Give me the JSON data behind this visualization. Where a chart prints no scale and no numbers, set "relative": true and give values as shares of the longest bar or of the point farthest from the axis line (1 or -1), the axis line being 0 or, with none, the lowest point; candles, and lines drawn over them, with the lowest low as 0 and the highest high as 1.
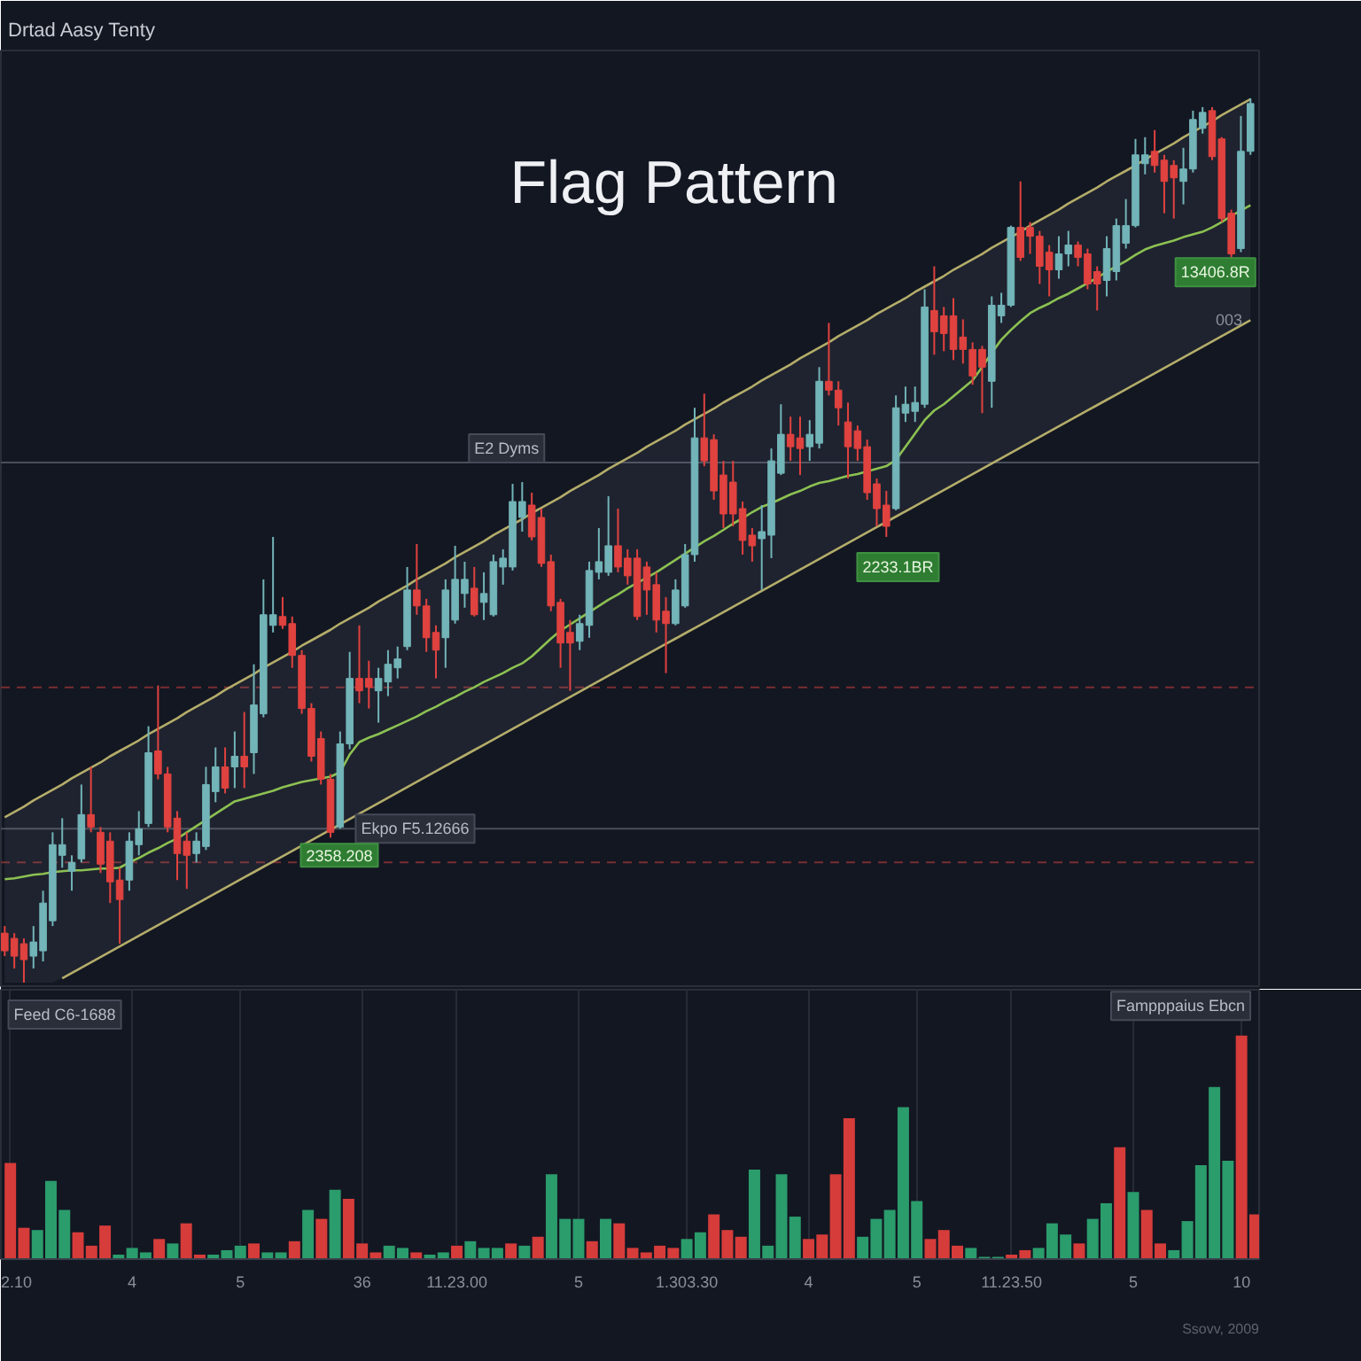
{
  "chart_data": [
    {
      "type": "candlestick",
      "relative": true,
      "tick_labels": false,
      "title": "Flag Pattern",
      "subtitle": "Drtad Aasy Tenty",
      "categories": [
        null,
        null,
        null,
        null,
        null,
        null,
        null,
        null,
        null,
        null,
        null,
        null,
        null,
        null,
        null,
        null,
        null,
        null,
        null,
        null,
        null,
        null,
        null,
        null,
        null,
        null,
        null,
        null,
        null,
        null,
        null,
        null,
        null,
        null,
        null,
        null,
        null,
        null,
        null,
        null,
        null,
        null,
        null,
        null,
        null,
        null,
        null,
        null,
        null,
        null,
        null,
        null,
        null,
        null,
        null,
        null,
        null,
        null,
        null,
        null,
        null,
        null,
        null,
        null,
        null,
        null,
        null,
        null,
        null,
        null,
        null,
        null,
        null,
        null,
        null,
        null,
        null,
        null,
        null,
        null,
        null,
        null,
        null,
        null,
        null,
        null,
        null,
        null,
        null,
        null,
        null,
        null,
        null,
        null,
        null,
        null,
        null,
        null,
        null,
        null,
        null,
        null,
        null,
        null,
        null,
        null,
        null,
        null,
        null,
        null,
        null,
        null,
        null,
        null,
        null,
        null,
        null,
        null,
        null,
        null,
        null,
        null,
        null,
        null,
        null,
        null,
        null,
        null,
        null,
        null,
        null
      ],
      "ohlc": [
        [
          0.056,
          0.064,
          0.03,
          0.036
        ],
        [
          0.05,
          0.056,
          0.016,
          0.03
        ],
        [
          0.044,
          0.05,
          0,
          0.026
        ],
        [
          0.03,
          0.064,
          0.016,
          0.046
        ],
        [
          0.036,
          0.104,
          0.024,
          0.09
        ],
        [
          0.07,
          0.17,
          0.064,
          0.156
        ],
        [
          0.144,
          0.186,
          0.13,
          0.156
        ],
        [
          0.126,
          0.144,
          0.104,
          0.136
        ],
        [
          0.14,
          0.224,
          0.136,
          0.19
        ],
        [
          0.19,
          0.244,
          0.17,
          0.176
        ],
        [
          0.17,
          0.176,
          0.124,
          0.134
        ],
        [
          0.16,
          0.17,
          0.09,
          0.114
        ],
        [
          0.116,
          0.13,
          0.044,
          0.094
        ],
        [
          0.116,
          0.17,
          0.104,
          0.16
        ],
        [
          0.156,
          0.194,
          0.144,
          0.174
        ],
        [
          0.18,
          0.29,
          0.176,
          0.26
        ],
        [
          0.262,
          0.336,
          0.23,
          0.236
        ],
        [
          0.236,
          0.244,
          0.17,
          0.176
        ],
        [
          0.186,
          0.194,
          0.116,
          0.146
        ],
        [
          0.16,
          0.17,
          0.106,
          0.144
        ],
        [
          0.146,
          0.17,
          0.136,
          0.16
        ],
        [
          0.154,
          0.244,
          0.15,
          0.224
        ],
        [
          0.216,
          0.266,
          0.204,
          0.244
        ],
        [
          0.244,
          0.266,
          0.214,
          0.22
        ],
        [
          0.244,
          0.284,
          0.22,
          0.256
        ],
        [
          0.256,
          0.306,
          0.22,
          0.244
        ],
        [
          0.26,
          0.36,
          0.236,
          0.314
        ],
        [
          0.304,
          0.456,
          0.3,
          0.416
        ],
        [
          0.404,
          0.504,
          0.396,
          0.416
        ],
        [
          0.414,
          0.436,
          0.4,
          0.404
        ],
        [
          0.406,
          0.414,
          0.356,
          0.37
        ],
        [
          0.37,
          0.376,
          0.304,
          0.31
        ],
        [
          0.31,
          0.316,
          0.25,
          0.256
        ],
        [
          0.276,
          0.284,
          0.224,
          0.23
        ],
        [
          0.23,
          0.236,
          0.164,
          0.17
        ],
        [
          0.176,
          0.284,
          0.174,
          0.27
        ],
        [
          0.27,
          0.374,
          0.264,
          0.344
        ],
        [
          0.344,
          0.404,
          0.316,
          0.33
        ],
        [
          0.344,
          0.364,
          0.31,
          0.334
        ],
        [
          0.33,
          0.356,
          0.294,
          0.344
        ],
        [
          0.34,
          0.376,
          0.324,
          0.36
        ],
        [
          0.356,
          0.38,
          0.344,
          0.366
        ],
        [
          0.38,
          0.47,
          0.376,
          0.444
        ],
        [
          0.444,
          0.496,
          0.416,
          0.426
        ],
        [
          0.426,
          0.434,
          0.374,
          0.39
        ],
        [
          0.396,
          0.404,
          0.344,
          0.376
        ],
        [
          0.39,
          0.456,
          0.356,
          0.444
        ],
        [
          0.41,
          0.494,
          0.406,
          0.456
        ],
        [
          0.44,
          0.476,
          0.424,
          0.456
        ],
        [
          0.446,
          0.47,
          0.414,
          0.416
        ],
        [
          0.43,
          0.464,
          0.41,
          0.44
        ],
        [
          0.416,
          0.484,
          0.414,
          0.476
        ],
        [
          0.47,
          0.49,
          0.45,
          0.48
        ],
        [
          0.47,
          0.564,
          0.466,
          0.544
        ],
        [
          0.526,
          0.566,
          0.51,
          0.544
        ],
        [
          0.54,
          0.554,
          0.5,
          0.504
        ],
        [
          0.526,
          0.536,
          0.47,
          0.474
        ],
        [
          0.476,
          0.484,
          0.42,
          0.426
        ],
        [
          0.43,
          0.434,
          0.356,
          0.384
        ],
        [
          0.396,
          0.41,
          0.33,
          0.384
        ],
        [
          0.386,
          0.416,
          0.376,
          0.406
        ],
        [
          0.404,
          0.476,
          0.39,
          0.466
        ],
        [
          0.464,
          0.514,
          0.456,
          0.476
        ],
        [
          0.464,
          0.55,
          0.46,
          0.494
        ],
        [
          0.494,
          0.536,
          0.464,
          0.47
        ],
        [
          0.48,
          0.49,
          0.45,
          0.46
        ],
        [
          0.48,
          0.49,
          0.41,
          0.414
        ],
        [
          0.47,
          0.476,
          0.416,
          0.444
        ],
        [
          0.45,
          0.464,
          0.396,
          0.41
        ],
        [
          0.42,
          0.436,
          0.35,
          0.406
        ],
        [
          0.406,
          0.456,
          0.404,
          0.444
        ],
        [
          0.426,
          0.496,
          0.424,
          0.484
        ],
        [
          0.484,
          0.65,
          0.476,
          0.616
        ],
        [
          0.616,
          0.666,
          0.584,
          0.59
        ],
        [
          0.614,
          0.62,
          0.546,
          0.556
        ],
        [
          0.574,
          0.59,
          0.514,
          0.53
        ],
        [
          0.566,
          0.59,
          0.516,
          0.53
        ],
        [
          0.536,
          0.544,
          0.484,
          0.5
        ],
        [
          0.506,
          0.514,
          0.476,
          0.494
        ],
        [
          0.502,
          0.54,
          0.444,
          0.51
        ],
        [
          0.506,
          0.604,
          0.48,
          0.59
        ],
        [
          0.576,
          0.654,
          0.574,
          0.62
        ],
        [
          0.62,
          0.64,
          0.59,
          0.606
        ],
        [
          0.616,
          0.64,
          0.574,
          0.604
        ],
        [
          0.606,
          0.636,
          0.59,
          0.62
        ],
        [
          0.61,
          0.696,
          0.604,
          0.68
        ],
        [
          0.68,
          0.746,
          0.664,
          0.67
        ],
        [
          0.67,
          0.68,
          0.63,
          0.65
        ],
        [
          0.634,
          0.656,
          0.57,
          0.606
        ],
        [
          0.624,
          0.63,
          0.59,
          0.604
        ],
        [
          0.606,
          0.614,
          0.546,
          0.554
        ],
        [
          0.564,
          0.57,
          0.516,
          0.536
        ],
        [
          0.54,
          0.556,
          0.504,
          0.516
        ],
        [
          0.536,
          0.664,
          0.534,
          0.65
        ],
        [
          0.644,
          0.674,
          0.634,
          0.654
        ],
        [
          0.646,
          0.674,
          0.634,
          0.656
        ],
        [
          0.654,
          0.784,
          0.65,
          0.764
        ],
        [
          0.76,
          0.81,
          0.71,
          0.736
        ],
        [
          0.754,
          0.764,
          0.714,
          0.734
        ],
        [
          0.754,
          0.774,
          0.704,
          0.716
        ],
        [
          0.73,
          0.75,
          0.7,
          0.716
        ],
        [
          0.716,
          0.724,
          0.676,
          0.686
        ],
        [
          0.716,
          0.72,
          0.644,
          0.696
        ],
        [
          0.68,
          0.776,
          0.65,
          0.766
        ],
        [
          0.754,
          0.78,
          0.746,
          0.766
        ],
        [
          0.766,
          0.856,
          0.764,
          0.854
        ],
        [
          0.854,
          0.906,
          0.816,
          0.82
        ],
        [
          0.854,
          0.86,
          0.824,
          0.844
        ],
        [
          0.844,
          0.85,
          0.79,
          0.81
        ],
        [
          0.826,
          0.834,
          0.776,
          0.806
        ],
        [
          0.806,
          0.844,
          0.796,
          0.824
        ],
        [
          0.824,
          0.85,
          0.81,
          0.834
        ],
        [
          0.834,
          0.838,
          0.81,
          0.82
        ],
        [
          0.824,
          0.83,
          0.784,
          0.79
        ],
        [
          0.804,
          0.81,
          0.76,
          0.79
        ],
        [
          0.794,
          0.844,
          0.776,
          0.83
        ],
        [
          0.804,
          0.864,
          0.794,
          0.856
        ],
        [
          0.836,
          0.886,
          0.83,
          0.856
        ],
        [
          0.856,
          0.954,
          0.854,
          0.936
        ],
        [
          0.926,
          0.956,
          0.914,
          0.936
        ],
        [
          0.94,
          0.964,
          0.916,
          0.924
        ],
        [
          0.93,
          0.936,
          0.87,
          0.906
        ],
        [
          0.924,
          0.93,
          0.864,
          0.91
        ],
        [
          0.906,
          0.944,
          0.88,
          0.92
        ],
        [
          0.92,
          0.986,
          0.916,
          0.976
        ],
        [
          0.966,
          0.99,
          0.96,
          0.984
        ],
        [
          0.986,
          0.99,
          0.93,
          0.934
        ],
        [
          0.954,
          0.956,
          0.86,
          0.864
        ],
        [
          0.87,
          0.874,
          0.82,
          0.824
        ],
        [
          0.83,
          0.98,
          0.826,
          0.94
        ],
        [
          0.94,
          1,
          0.936,
          0.994
        ]
      ],
      "colors": [
        "#e0423f",
        "#e0423f",
        "#e0423f",
        "#72b4b8",
        "#72b4b8",
        "#72b4b8",
        "#72b4b8",
        "#72b4b8",
        "#72b4b8",
        "#e0423f",
        "#e0423f",
        "#e0423f",
        "#e0423f",
        "#72b4b8",
        "#72b4b8",
        "#72b4b8",
        "#e0423f",
        "#e0423f",
        "#e0423f",
        "#e0423f",
        "#72b4b8",
        "#72b4b8",
        "#72b4b8",
        "#e0423f",
        "#72b4b8",
        "#e0423f",
        "#72b4b8",
        "#72b4b8",
        "#72b4b8",
        "#e0423f",
        "#e0423f",
        "#e0423f",
        "#e0423f",
        "#e0423f",
        "#e0423f",
        "#72b4b8",
        "#72b4b8",
        "#e0423f",
        "#e0423f",
        "#72b4b8",
        "#72b4b8",
        "#72b4b8",
        "#72b4b8",
        "#e0423f",
        "#e0423f",
        "#e0423f",
        "#72b4b8",
        "#72b4b8",
        "#72b4b8",
        "#e0423f",
        "#72b4b8",
        "#72b4b8",
        "#72b4b8",
        "#72b4b8",
        "#72b4b8",
        "#e0423f",
        "#e0423f",
        "#e0423f",
        "#e0423f",
        "#e0423f",
        "#72b4b8",
        "#72b4b8",
        "#72b4b8",
        "#72b4b8",
        "#e0423f",
        "#e0423f",
        "#e0423f",
        "#e0423f",
        "#e0423f",
        "#e0423f",
        "#72b4b8",
        "#72b4b8",
        "#72b4b8",
        "#e0423f",
        "#e0423f",
        "#e0423f",
        "#e0423f",
        "#e0423f",
        "#e0423f",
        "#72b4b8",
        "#72b4b8",
        "#72b4b8",
        "#e0423f",
        "#e0423f",
        "#72b4b8",
        "#72b4b8",
        "#e0423f",
        "#e0423f",
        "#e0423f",
        "#e0423f",
        "#e0423f",
        "#e0423f",
        "#e0423f",
        "#72b4b8",
        "#72b4b8",
        "#72b4b8",
        "#72b4b8",
        "#e0423f",
        "#e0423f",
        "#e0423f",
        "#e0423f",
        "#e0423f",
        "#e0423f",
        "#72b4b8",
        "#72b4b8",
        "#72b4b8",
        "#e0423f",
        "#e0423f",
        "#e0423f",
        "#e0423f",
        "#72b4b8",
        "#72b4b8",
        "#e0423f",
        "#e0423f",
        "#e0423f",
        "#72b4b8",
        "#72b4b8",
        "#72b4b8",
        "#72b4b8",
        "#72b4b8",
        "#e0423f",
        "#e0423f",
        "#e0423f",
        "#72b4b8",
        "#72b4b8",
        "#72b4b8",
        "#e0423f",
        "#e0423f",
        "#e0423f",
        "#72b4b8",
        "#72b4b8"
      ],
      "series": [
        {
          "type": "line",
          "color": "#b4ad6a",
          "values": [
            0.187,
            0.193,
            0.199,
            0.206,
            0.212,
            0.218,
            0.224,
            0.231,
            0.237,
            0.243,
            0.249,
            0.256,
            0.262,
            0.268,
            0.274,
            0.281,
            0.287,
            0.293,
            0.299,
            0.306,
            0.312,
            0.318,
            0.324,
            0.331,
            0.337,
            0.343,
            0.349,
            0.356,
            0.362,
            0.368,
            0.374,
            0.381,
            0.387,
            0.393,
            0.399,
            0.406,
            0.412,
            0.418,
            0.424,
            0.431,
            0.437,
            0.443,
            0.449,
            0.456,
            0.462,
            0.468,
            0.474,
            0.481,
            0.487,
            0.493,
            0.499,
            0.506,
            0.512,
            0.518,
            0.524,
            0.531,
            0.537,
            0.543,
            0.549,
            0.556,
            0.562,
            0.568,
            0.574,
            0.581,
            0.587,
            0.593,
            0.599,
            0.606,
            0.612,
            0.618,
            0.624,
            0.631,
            0.637,
            0.643,
            0.649,
            0.656,
            0.662,
            0.668,
            0.674,
            0.681,
            0.687,
            0.693,
            0.699,
            0.706,
            0.712,
            0.718,
            0.724,
            0.731,
            0.737,
            0.743,
            0.749,
            0.756,
            0.762,
            0.768,
            0.774,
            0.781,
            0.787,
            0.793,
            0.799,
            0.806,
            0.812,
            0.818,
            0.824,
            0.831,
            0.837,
            0.843,
            0.849,
            0.856,
            0.862,
            0.868,
            0.874,
            0.881,
            0.887,
            0.893,
            0.899,
            0.906,
            0.912,
            0.918,
            0.924,
            0.931,
            0.937,
            0.943,
            0.949,
            0.956,
            0.962,
            0.968,
            0.974,
            0.981,
            0.987,
            0.993,
            0.999
          ]
        },
        {
          "type": "line",
          "color": "#b4ad6a",
          "values": [
            null,
            null,
            null,
            null,
            null,
            null,
            0.005,
            0.011,
            0.017,
            0.023,
            0.029,
            0.035,
            0.041,
            0.047,
            0.053,
            0.059,
            0.065,
            0.071,
            0.077,
            0.083,
            0.089,
            0.095,
            0.101,
            0.107,
            0.113,
            0.119,
            0.125,
            0.131,
            0.137,
            0.143,
            0.149,
            0.155,
            0.161,
            0.167,
            0.173,
            0.179,
            0.185,
            0.191,
            0.197,
            0.203,
            0.209,
            0.215,
            0.221,
            0.227,
            0.233,
            0.239,
            0.245,
            0.251,
            0.257,
            0.263,
            0.269,
            0.275,
            0.281,
            0.287,
            0.293,
            0.299,
            0.305,
            0.311,
            0.317,
            0.323,
            0.329,
            0.335,
            0.341,
            0.347,
            0.353,
            0.359,
            0.365,
            0.371,
            0.377,
            0.383,
            0.389,
            0.395,
            0.401,
            0.407,
            0.413,
            0.419,
            0.425,
            0.431,
            0.437,
            0.443,
            0.449,
            0.455,
            0.461,
            0.467,
            0.473,
            0.479,
            0.485,
            0.491,
            0.497,
            0.503,
            0.509,
            0.515,
            0.521,
            0.527,
            0.533,
            0.539,
            0.545,
            0.551,
            0.557,
            0.563,
            0.569,
            0.575,
            0.581,
            0.587,
            0.593,
            0.599,
            0.605,
            0.611,
            0.617,
            0.623,
            0.629,
            0.635,
            0.641,
            0.647,
            0.653,
            0.659,
            0.665,
            0.671,
            0.677,
            0.683,
            0.689,
            0.695,
            0.701,
            0.707,
            0.713,
            0.719,
            0.725,
            0.731,
            0.737,
            0.743,
            0.749
          ]
        },
        {
          "type": "line",
          "color": "#8cc152",
          "values": [
            0.117,
            0.118,
            0.12,
            0.122,
            0.123,
            0.125,
            0.126,
            0.127,
            0.127,
            0.128,
            0.129,
            0.129,
            0.13,
            0.136,
            0.141,
            0.147,
            0.152,
            0.158,
            0.163,
            0.17,
            0.177,
            0.184,
            0.191,
            0.198,
            0.205,
            0.208,
            0.211,
            0.214,
            0.217,
            0.221,
            0.224,
            0.227,
            0.229,
            0.231,
            0.233,
            0.238,
            0.258,
            0.272,
            0.277,
            0.281,
            0.286,
            0.291,
            0.296,
            0.301,
            0.307,
            0.312,
            0.318,
            0.323,
            0.329,
            0.334,
            0.34,
            0.345,
            0.35,
            0.356,
            0.361,
            0.369,
            0.379,
            0.389,
            0.398,
            0.405,
            0.412,
            0.419,
            0.426,
            0.433,
            0.439,
            0.446,
            0.452,
            0.458,
            0.464,
            0.471,
            0.478,
            0.485,
            0.492,
            0.499,
            0.505,
            0.512,
            0.519,
            0.525,
            0.532,
            0.538,
            0.542,
            0.547,
            0.552,
            0.556,
            0.561,
            0.565,
            0.567,
            0.57,
            0.573,
            0.575,
            0.578,
            0.581,
            0.584,
            0.591,
            0.606,
            0.621,
            0.636,
            0.647,
            0.654,
            0.663,
            0.672,
            0.681,
            0.696,
            0.712,
            0.727,
            0.738,
            0.748,
            0.757,
            0.763,
            0.768,
            0.774,
            0.779,
            0.785,
            0.791,
            0.797,
            0.804,
            0.81,
            0.816,
            0.823,
            0.829,
            0.833,
            0.836,
            0.839,
            0.843,
            0.846,
            0.849,
            0.854,
            0.86,
            0.867,
            0.873,
            0.879
          ],
          "lower": [
            0,
            0,
            0,
            0,
            0,
            0,
            0.005,
            0.011,
            0.017,
            0.023,
            0.029,
            0.035,
            0.041,
            0.047,
            0.053,
            0.059,
            0.065,
            0.071,
            0.077,
            0.083,
            0.089,
            0.095,
            0.101,
            0.107,
            0.113,
            0.119,
            0.125,
            0.131,
            0.137,
            0.143,
            0.149,
            0.155,
            0.161,
            0.167,
            0.173,
            0.179,
            0.185,
            0.191,
            0.197,
            0.203,
            0.209,
            0.215,
            0.221,
            0.227,
            0.233,
            0.239,
            0.245,
            0.251,
            0.257,
            0.263,
            0.269,
            0.275,
            0.281,
            0.287,
            0.293,
            0.299,
            0.305,
            0.311,
            0.317,
            0.323,
            0.329,
            0.335,
            0.341,
            0.347,
            0.353,
            0.359,
            0.365,
            0.371,
            0.377,
            0.383,
            0.389,
            0.395,
            0.401,
            0.407,
            0.413,
            0.419,
            0.425,
            0.431,
            0.437,
            0.443,
            0.449,
            0.455,
            0.461,
            0.467,
            0.473,
            0.479,
            0.485,
            0.491,
            0.497,
            0.503,
            0.509,
            0.515,
            0.521,
            0.527,
            0.533,
            0.539,
            0.545,
            0.551,
            0.557,
            0.563,
            0.569,
            0.575,
            0.581,
            0.587,
            0.593,
            0.599,
            0.605,
            0.611,
            0.617,
            0.623,
            0.629,
            0.635,
            0.641,
            0.647,
            0.653,
            0.659,
            0.665,
            0.671,
            0.677,
            0.683,
            0.689,
            0.695,
            0.701,
            0.707,
            0.713,
            0.719,
            0.725,
            0.731,
            0.737,
            0.743,
            0.749
          ],
          "upper": [
            0.187,
            0.193,
            0.199,
            0.206,
            0.212,
            0.218,
            0.224,
            0.231,
            0.237,
            0.243,
            0.249,
            0.256,
            0.262,
            0.268,
            0.274,
            0.281,
            0.287,
            0.293,
            0.299,
            0.306,
            0.312,
            0.318,
            0.324,
            0.331,
            0.337,
            0.343,
            0.349,
            0.356,
            0.362,
            0.368,
            0.374,
            0.381,
            0.387,
            0.393,
            0.399,
            0.406,
            0.412,
            0.418,
            0.424,
            0.431,
            0.437,
            0.443,
            0.449,
            0.456,
            0.462,
            0.468,
            0.474,
            0.481,
            0.487,
            0.493,
            0.499,
            0.506,
            0.512,
            0.518,
            0.524,
            0.531,
            0.537,
            0.543,
            0.549,
            0.556,
            0.562,
            0.568,
            0.574,
            0.581,
            0.587,
            0.593,
            0.599,
            0.606,
            0.612,
            0.618,
            0.624,
            0.631,
            0.637,
            0.643,
            0.649,
            0.656,
            0.662,
            0.668,
            0.674,
            0.681,
            0.687,
            0.693,
            0.699,
            0.706,
            0.712,
            0.718,
            0.724,
            0.731,
            0.737,
            0.743,
            0.749,
            0.756,
            0.762,
            0.768,
            0.774,
            0.781,
            0.787,
            0.793,
            0.799,
            0.806,
            0.812,
            0.818,
            0.824,
            0.831,
            0.837,
            0.843,
            0.849,
            0.856,
            0.862,
            0.868,
            0.874,
            0.881,
            0.887,
            0.893,
            0.899,
            0.906,
            0.912,
            0.918,
            0.924,
            0.931,
            0.937,
            0.943,
            0.949,
            0.956,
            0.962,
            0.968,
            0.974,
            0.981,
            0.987,
            0.993,
            0.999
          ]
        }
      ],
      "ref_lines": [
        {
          "axis": "y",
          "value": 0.588,
          "label": "E2 Dyms",
          "color": "#4a4f5b"
        },
        {
          "axis": "y",
          "value": 0.334,
          "color": "#7a2e33",
          "line_style": "dashed"
        },
        {
          "axis": "y",
          "value": 0.174,
          "label": "Ekpo F5.12666",
          "color": "#4a4f5b"
        },
        {
          "axis": "y",
          "value": 0.136,
          "color": "#7a2e33",
          "line_style": "dashed"
        }
      ],
      "annotations": [
        "003",
        "2358.208",
        "2233.1BR",
        "13406.8R"
      ]
    },
    {
      "type": "bar",
      "relative": true,
      "tick_labels": "x",
      "grid": "x",
      "categories": [
        "2.10",
        null,
        null,
        null,
        null,
        null,
        null,
        null,
        null,
        "4",
        null,
        null,
        null,
        null,
        null,
        null,
        null,
        "5",
        null,
        null,
        null,
        null,
        null,
        null,
        null,
        null,
        "36",
        null,
        null,
        null,
        null,
        null,
        null,
        "11.23.00",
        null,
        null,
        null,
        null,
        null,
        null,
        null,
        null,
        "5",
        null,
        null,
        null,
        null,
        null,
        null,
        null,
        "1.303.30",
        null,
        null,
        null,
        null,
        null,
        null,
        null,
        null,
        "4",
        null,
        null,
        null,
        null,
        null,
        null,
        null,
        "5",
        null,
        null,
        null,
        null,
        null,
        null,
        "11.23.50",
        null,
        null,
        null,
        null,
        null,
        null,
        null,
        null,
        "5",
        null,
        null,
        null,
        null,
        null,
        null,
        null,
        "10",
        null
      ],
      "values": [
        0.43,
        0.14,
        0.13,
        0.35,
        0.22,
        0.12,
        0.06,
        0.15,
        0.02,
        0.05,
        0.03,
        0.09,
        0.07,
        0.16,
        0.02,
        0.02,
        0.04,
        0.06,
        0.07,
        0.03,
        0.03,
        0.08,
        0.22,
        0.18,
        0.31,
        0.27,
        0.07,
        0.03,
        0.06,
        0.05,
        0.03,
        0.02,
        0.03,
        0.06,
        0.08,
        0.05,
        0.05,
        0.07,
        0.06,
        0.1,
        0.38,
        0.18,
        0.18,
        0.08,
        0.18,
        0.16,
        0.05,
        0.03,
        0.06,
        0.05,
        0.09,
        0.12,
        0.2,
        0.13,
        0.1,
        0.4,
        0.06,
        0.38,
        0.19,
        0.09,
        0.11,
        0.38,
        0.63,
        0.1,
        0.18,
        0.22,
        0.68,
        0.26,
        0.09,
        0.13,
        0.06,
        0.05,
        0.01,
        0.01,
        0.02,
        0.04,
        0.05,
        0.16,
        0.11,
        0.07,
        0.18,
        0.25,
        0.5,
        0.3,
        0.22,
        0.07,
        0.04,
        0.17,
        0.42,
        0.77,
        0.44,
        1,
        0.2
      ],
      "colors": [
        "#d63c3a",
        "#d63c3a",
        "#2b9c6c",
        "#2b9c6c",
        "#2b9c6c",
        "#d63c3a",
        "#d63c3a",
        "#d63c3a",
        "#2b9c6c",
        "#2b9c6c",
        "#2b9c6c",
        "#d63c3a",
        "#2b9c6c",
        "#d63c3a",
        "#d63c3a",
        "#2b9c6c",
        "#2b9c6c",
        "#2b9c6c",
        "#d63c3a",
        "#2b9c6c",
        "#2b9c6c",
        "#d63c3a",
        "#2b9c6c",
        "#d63c3a",
        "#2b9c6c",
        "#d63c3a",
        "#d63c3a",
        "#d63c3a",
        "#2b9c6c",
        "#2b9c6c",
        "#d63c3a",
        "#2b9c6c",
        "#2b9c6c",
        "#d63c3a",
        "#2b9c6c",
        "#2b9c6c",
        "#2b9c6c",
        "#d63c3a",
        "#2b9c6c",
        "#d63c3a",
        "#2b9c6c",
        "#2b9c6c",
        "#2b9c6c",
        "#d63c3a",
        "#2b9c6c",
        "#d63c3a",
        "#d63c3a",
        "#d63c3a",
        "#d63c3a",
        "#d63c3a",
        "#2b9c6c",
        "#2b9c6c",
        "#d63c3a",
        "#d63c3a",
        "#d63c3a",
        "#2b9c6c",
        "#2b9c6c",
        "#2b9c6c",
        "#2b9c6c",
        "#d63c3a",
        "#d63c3a",
        "#d63c3a",
        "#d63c3a",
        "#2b9c6c",
        "#2b9c6c",
        "#2b9c6c",
        "#2b9c6c",
        "#2b9c6c",
        "#d63c3a",
        "#d63c3a",
        "#d63c3a",
        "#2b9c6c",
        "#2b9c6c",
        "#2b9c6c",
        "#d63c3a",
        "#d63c3a",
        "#2b9c6c",
        "#2b9c6c",
        "#2b9c6c",
        "#d63c3a",
        "#2b9c6c",
        "#2b9c6c",
        "#d63c3a",
        "#2b9c6c",
        "#d63c3a",
        "#d63c3a",
        "#2b9c6c",
        "#2b9c6c",
        "#2b9c6c",
        "#2b9c6c",
        "#2b9c6c",
        "#d63c3a",
        "#d63c3a"
      ],
      "annotations": [
        "Feed C6-1688",
        "Fampppaius Ebcn",
        "Ssovv, 2009"
      ]
    }
  ]
}
